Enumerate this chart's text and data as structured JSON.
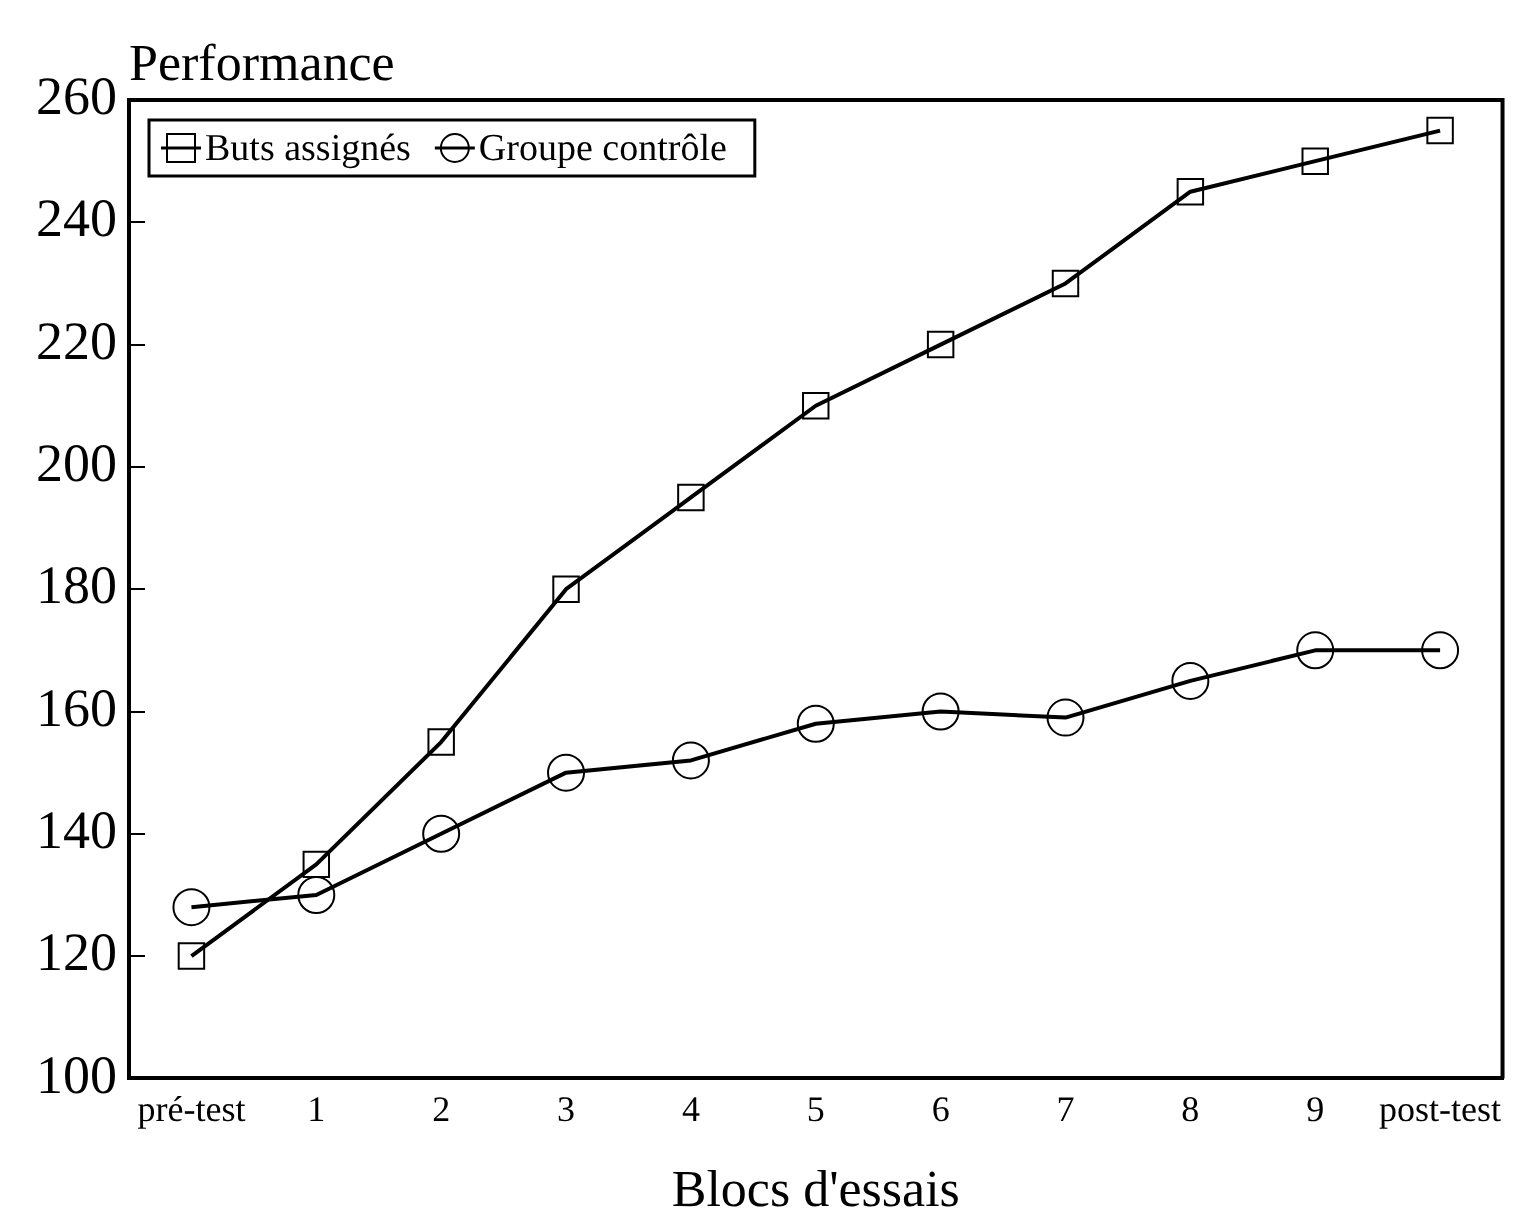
{
  "chart_data": {
    "type": "line",
    "ylabel": "Performance",
    "xlabel": "Blocs d'essais",
    "categories": [
      "pré-test",
      "1",
      "2",
      "3",
      "4",
      "5",
      "6",
      "7",
      "8",
      "9",
      "post-test"
    ],
    "series": [
      {
        "name": "Buts assignés",
        "color": "#000000",
        "marker": "square",
        "values": [
          120,
          135,
          155,
          180,
          195,
          210,
          220,
          230,
          245,
          250,
          255
        ]
      },
      {
        "name": "Groupe contrôle",
        "color": "#000000",
        "marker": "circle",
        "values": [
          128,
          130,
          140,
          150,
          152,
          158,
          160,
          159,
          165,
          170,
          170
        ]
      }
    ],
    "ylim": [
      100,
      260
    ],
    "yticks": [
      100,
      120,
      140,
      160,
      180,
      200,
      220,
      240,
      260
    ],
    "grid": false,
    "legend": "top left",
    "line_style": "solid"
  }
}
